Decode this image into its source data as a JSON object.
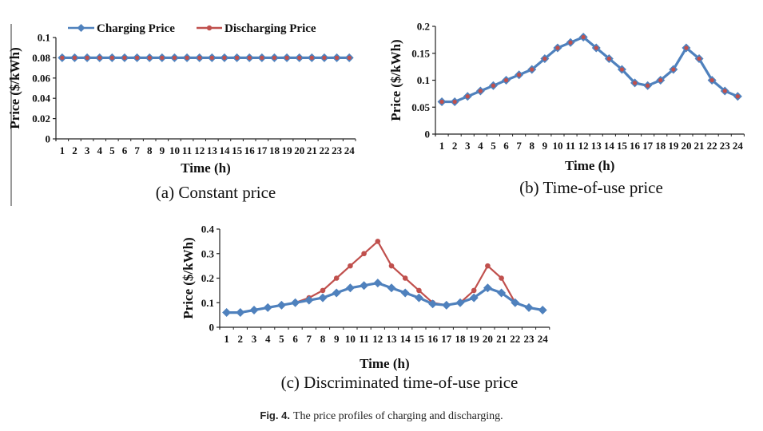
{
  "legend": {
    "charging_label": "Charging Price",
    "discharging_label": "Discharging Price"
  },
  "colors": {
    "charging": "#4F81BD",
    "discharging": "#C0504D",
    "axis": "#222222",
    "divider": "#333333"
  },
  "figure_caption": {
    "number": "Fig. 4.",
    "text": "The price profiles of charging and discharging."
  },
  "chart_data": [
    {
      "id": "a",
      "type": "line",
      "caption": "(a) Constant price",
      "xlabel": "Time (h)",
      "ylabel": "Price ($/kWh)",
      "categories": [
        "1",
        "2",
        "3",
        "4",
        "5",
        "6",
        "7",
        "8",
        "9",
        "10",
        "11",
        "12",
        "13",
        "14",
        "15",
        "16",
        "17",
        "18",
        "19",
        "20",
        "21",
        "22",
        "23",
        "24"
      ],
      "ylim": [
        0,
        0.1
      ],
      "yticks": [
        0,
        0.02,
        0.04,
        0.06,
        0.08,
        0.1
      ],
      "ytick_labels": [
        "0",
        "0.02",
        "0.04",
        "0.06",
        "0.08",
        "0.1"
      ],
      "grid": false,
      "legend": "top",
      "series": [
        {
          "name": "Charging Price",
          "values": [
            0.08,
            0.08,
            0.08,
            0.08,
            0.08,
            0.08,
            0.08,
            0.08,
            0.08,
            0.08,
            0.08,
            0.08,
            0.08,
            0.08,
            0.08,
            0.08,
            0.08,
            0.08,
            0.08,
            0.08,
            0.08,
            0.08,
            0.08,
            0.08
          ]
        },
        {
          "name": "Discharging Price",
          "values": [
            0.08,
            0.08,
            0.08,
            0.08,
            0.08,
            0.08,
            0.08,
            0.08,
            0.08,
            0.08,
            0.08,
            0.08,
            0.08,
            0.08,
            0.08,
            0.08,
            0.08,
            0.08,
            0.08,
            0.08,
            0.08,
            0.08,
            0.08,
            0.08
          ]
        }
      ]
    },
    {
      "id": "b",
      "type": "line",
      "caption": "(b) Time-of-use price",
      "xlabel": "Time (h)",
      "ylabel": "Price ($/kWh)",
      "categories": [
        "1",
        "2",
        "3",
        "4",
        "5",
        "6",
        "7",
        "8",
        "9",
        "10",
        "11",
        "12",
        "13",
        "14",
        "15",
        "16",
        "17",
        "18",
        "19",
        "20",
        "21",
        "22",
        "23",
        "24"
      ],
      "ylim": [
        0,
        0.2
      ],
      "yticks": [
        0,
        0.05,
        0.1,
        0.15,
        0.2
      ],
      "ytick_labels": [
        "0",
        "0.05",
        "0.1",
        "0.15",
        "0.2"
      ],
      "grid": false,
      "series": [
        {
          "name": "Charging Price",
          "values": [
            0.06,
            0.06,
            0.07,
            0.08,
            0.09,
            0.1,
            0.11,
            0.12,
            0.14,
            0.16,
            0.17,
            0.18,
            0.16,
            0.14,
            0.12,
            0.095,
            0.09,
            0.1,
            0.12,
            0.16,
            0.14,
            0.1,
            0.08,
            0.07
          ]
        },
        {
          "name": "Discharging Price",
          "values": [
            0.06,
            0.06,
            0.07,
            0.08,
            0.09,
            0.1,
            0.11,
            0.12,
            0.14,
            0.16,
            0.17,
            0.18,
            0.16,
            0.14,
            0.12,
            0.095,
            0.09,
            0.1,
            0.12,
            0.16,
            0.14,
            0.1,
            0.08,
            0.07
          ]
        }
      ]
    },
    {
      "id": "c",
      "type": "line",
      "caption": "(c) Discriminated time-of-use price",
      "xlabel": "Time (h)",
      "ylabel": "Price ($/kWh)",
      "categories": [
        "1",
        "2",
        "3",
        "4",
        "5",
        "6",
        "7",
        "8",
        "9",
        "10",
        "11",
        "12",
        "13",
        "14",
        "15",
        "16",
        "17",
        "18",
        "19",
        "20",
        "21",
        "22",
        "23",
        "24"
      ],
      "ylim": [
        0,
        0.4
      ],
      "yticks": [
        0,
        0.1,
        0.2,
        0.3,
        0.4
      ],
      "ytick_labels": [
        "0",
        "0.1",
        "0.2",
        "0.3",
        "0.4"
      ],
      "grid": false,
      "series": [
        {
          "name": "Charging Price",
          "values": [
            0.06,
            0.06,
            0.07,
            0.08,
            0.09,
            0.1,
            0.11,
            0.12,
            0.14,
            0.16,
            0.17,
            0.18,
            0.16,
            0.14,
            0.12,
            0.095,
            0.09,
            0.1,
            0.12,
            0.16,
            0.14,
            0.1,
            0.08,
            0.07
          ]
        },
        {
          "name": "Discharging Price",
          "values": [
            0.06,
            0.06,
            0.07,
            0.08,
            0.09,
            0.1,
            0.12,
            0.15,
            0.2,
            0.25,
            0.3,
            0.35,
            0.25,
            0.2,
            0.15,
            0.1,
            0.09,
            0.1,
            0.15,
            0.25,
            0.2,
            0.1,
            0.08,
            0.07
          ]
        }
      ]
    }
  ]
}
